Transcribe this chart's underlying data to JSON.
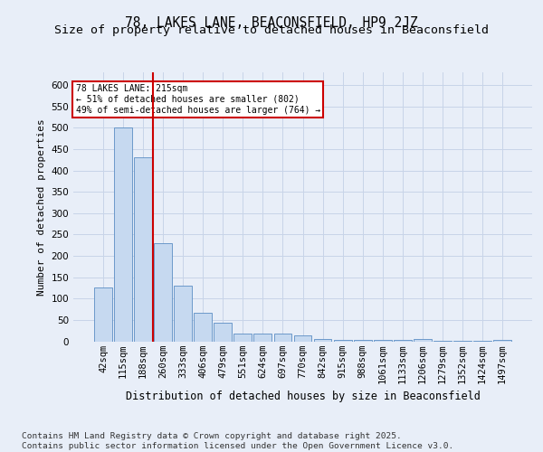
{
  "title_line1": "78, LAKES LANE, BEACONSFIELD, HP9 2JZ",
  "title_line2": "Size of property relative to detached houses in Beaconsfield",
  "xlabel": "Distribution of detached houses by size in Beaconsfield",
  "ylabel": "Number of detached properties",
  "categories": [
    "42sqm",
    "115sqm",
    "188sqm",
    "260sqm",
    "333sqm",
    "406sqm",
    "479sqm",
    "551sqm",
    "624sqm",
    "697sqm",
    "770sqm",
    "842sqm",
    "915sqm",
    "988sqm",
    "1061sqm",
    "1133sqm",
    "1206sqm",
    "1279sqm",
    "1352sqm",
    "1424sqm",
    "1497sqm"
  ],
  "values": [
    125,
    500,
    430,
    230,
    130,
    67,
    44,
    17,
    17,
    17,
    13,
    6,
    4,
    3,
    3,
    3,
    5,
    1,
    1,
    1,
    4
  ],
  "bar_color": "#c6d9f0",
  "bar_edge_color": "#5b8ec4",
  "red_line_x": 2.5,
  "annotation_text": "78 LAKES LANE: 215sqm\n← 51% of detached houses are smaller (802)\n49% of semi-detached houses are larger (764) →",
  "annotation_box_color": "#ffffff",
  "annotation_box_edge": "#cc0000",
  "footnote": "Contains HM Land Registry data © Crown copyright and database right 2025.\nContains public sector information licensed under the Open Government Licence v3.0.",
  "ylim": [
    0,
    630
  ],
  "yticks": [
    0,
    50,
    100,
    150,
    200,
    250,
    300,
    350,
    400,
    450,
    500,
    550,
    600
  ],
  "grid_color": "#c8d4e8",
  "background_color": "#e8eef8",
  "plot_bg_color": "#e8eef8",
  "title_fontsize": 10.5,
  "subtitle_fontsize": 9.5,
  "footnote_fontsize": 6.8,
  "tick_fontsize": 7.5,
  "ylabel_fontsize": 8,
  "xlabel_fontsize": 8.5
}
